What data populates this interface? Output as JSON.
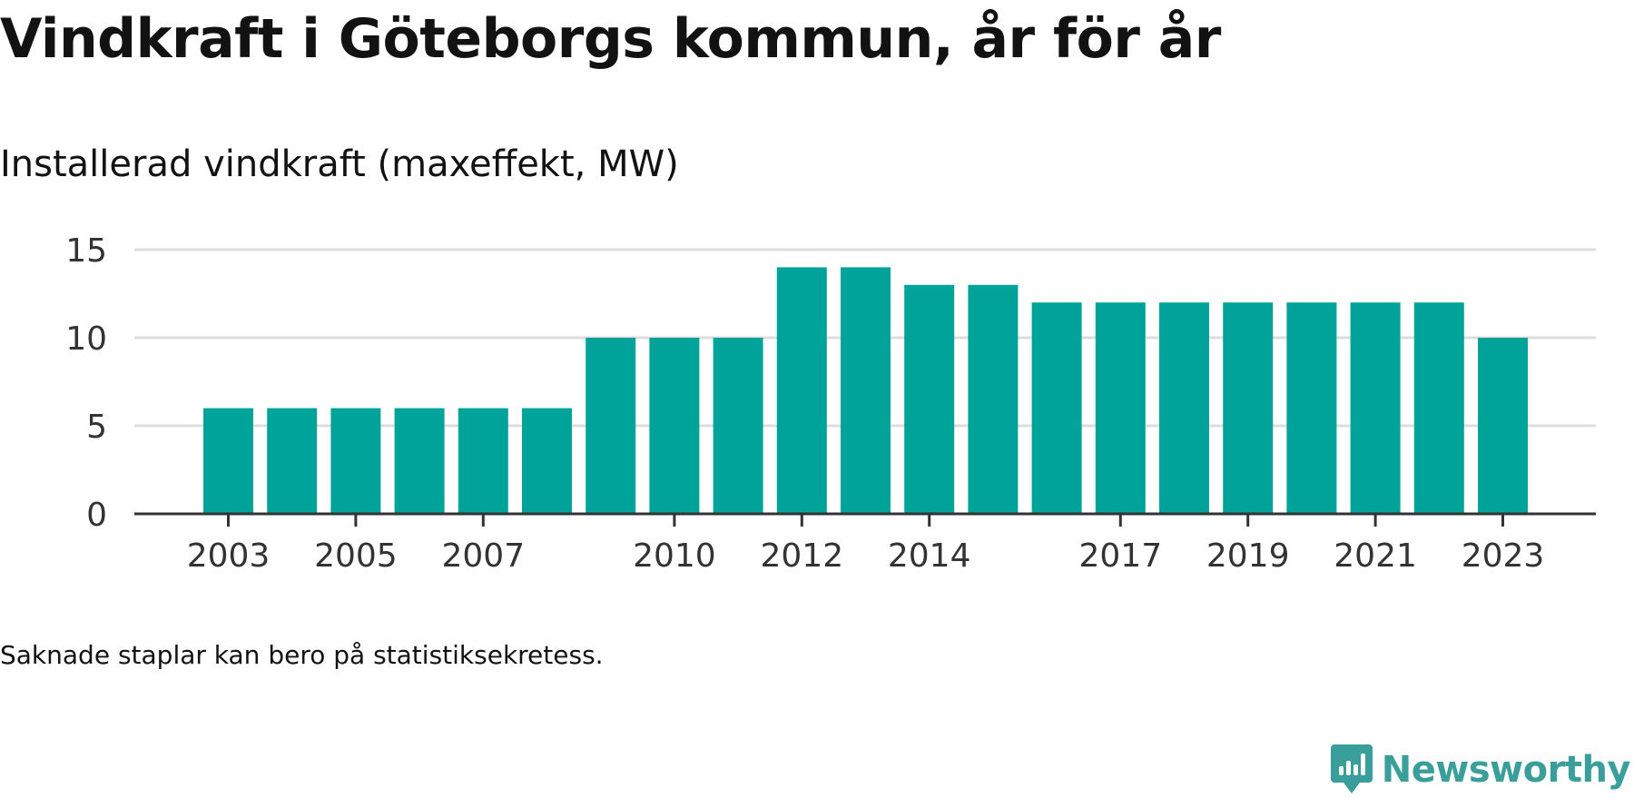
{
  "title": "Vindkraft i Göteborgs kommun, år för år",
  "subtitle": "Installerad vindkraft (maxeffekt, MW)",
  "footnote": "Saknade staplar kan bero på statistiksekretess.",
  "brand": {
    "name": "Newsworthy",
    "logo_icon": "newsworthy-chart-bubble-icon"
  },
  "colors": {
    "bar": "#00a39a",
    "grid": "#dddddd",
    "axis": "#333333",
    "brand": "#3a9e9a"
  },
  "chart_data": {
    "type": "bar",
    "categories": [
      "2003",
      "2004",
      "2005",
      "2006",
      "2007",
      "2008",
      "2009",
      "2010",
      "2011",
      "2012",
      "2013",
      "2014",
      "2015",
      "2016",
      "2017",
      "2018",
      "2019",
      "2020",
      "2021",
      "2022",
      "2023"
    ],
    "values": [
      6,
      6,
      6,
      6,
      6,
      6,
      10,
      10,
      10,
      14,
      14,
      13,
      13,
      12,
      12,
      12,
      12,
      12,
      12,
      12,
      10
    ],
    "xtick_labels": [
      "2003",
      "2005",
      "2007",
      "2010",
      "2012",
      "2014",
      "2017",
      "2019",
      "2021",
      "2023"
    ],
    "yticks": [
      0,
      5,
      10,
      15
    ],
    "ylim": [
      0,
      15
    ],
    "grid": true,
    "legend": "none",
    "xlabel": "",
    "ylabel": ""
  }
}
